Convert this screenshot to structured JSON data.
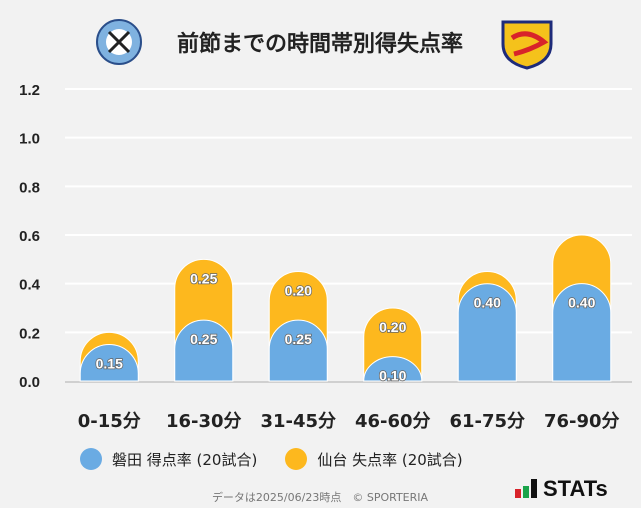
{
  "title": "前節までの時間帯別得失点率",
  "chart_data": {
    "type": "bar",
    "stacked": true,
    "title": "前節までの時間帯別得失点率",
    "categories": [
      "0-15分",
      "16-30分",
      "31-45分",
      "46-60分",
      "61-75分",
      "76-90分"
    ],
    "series": [
      {
        "name": "磐田 得点率 (20試合)",
        "color": "#6aabe3",
        "values": [
          0.15,
          0.25,
          0.25,
          0.1,
          0.4,
          0.4
        ],
        "labels": [
          "0.15",
          "0.25",
          "0.25",
          "0.10",
          "0.40",
          "0.40"
        ]
      },
      {
        "name": "仙台 失点率 (20試合)",
        "color": "#fdb81e",
        "values": [
          0.05,
          0.25,
          0.2,
          0.2,
          0.05,
          0.2
        ],
        "labels": [
          "",
          "0.25",
          "0.20",
          "0.20",
          "",
          ""
        ]
      }
    ],
    "ylim": [
      0,
      1.2
    ],
    "yticks": [
      "0.0",
      "0.2",
      "0.4",
      "0.6",
      "0.8",
      "1.0",
      "1.2"
    ],
    "grid": true,
    "legend": "bottom"
  },
  "footer": "データは2025/06/23時点　© SPORTERIA",
  "brand": "STATs"
}
